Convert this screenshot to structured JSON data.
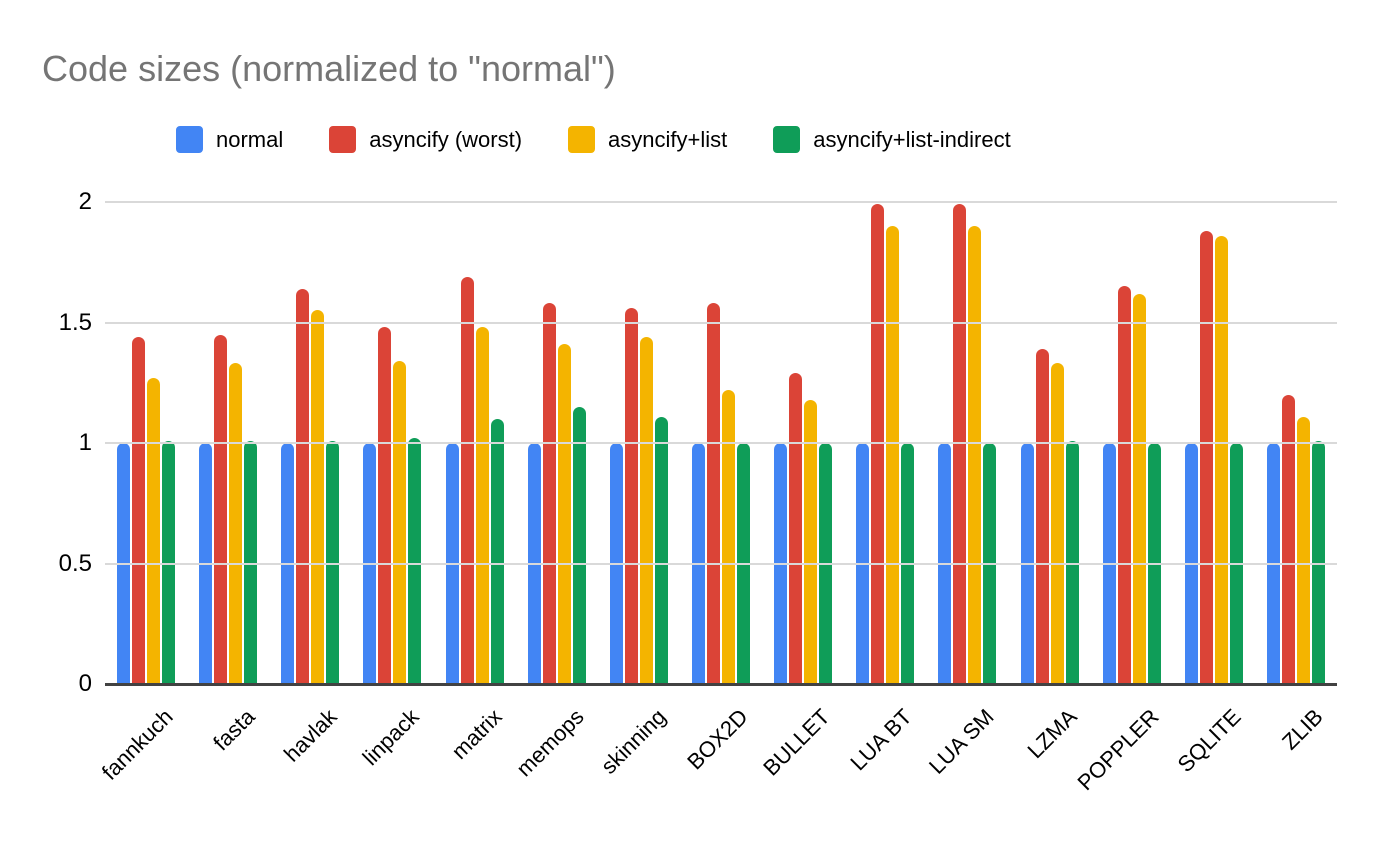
{
  "chart_data": {
    "type": "bar",
    "title": "Code sizes (normalized to \"normal\")",
    "title_color": "#757575",
    "categories": [
      "fannkuch",
      "fasta",
      "havlak",
      "linpack",
      "matrix",
      "memops",
      "skinning",
      "BOX2D",
      "BULLET",
      "LUA BT",
      "LUA SM",
      "LZMA",
      "POPPLER",
      "SQLITE",
      "ZLIB"
    ],
    "series": [
      {
        "name": "normal",
        "color": "#4285F4",
        "values": [
          1.0,
          1.0,
          1.0,
          1.0,
          1.0,
          1.0,
          1.0,
          1.0,
          1.0,
          1.0,
          1.0,
          1.0,
          1.0,
          1.0,
          1.0
        ]
      },
      {
        "name": "asyncify (worst)",
        "color": "#DB4437",
        "values": [
          1.44,
          1.45,
          1.64,
          1.48,
          1.69,
          1.58,
          1.56,
          1.58,
          1.29,
          1.99,
          1.99,
          1.39,
          1.65,
          1.88,
          1.2
        ]
      },
      {
        "name": "asyncify+list",
        "color": "#F4B400",
        "values": [
          1.27,
          1.33,
          1.55,
          1.34,
          1.48,
          1.41,
          1.44,
          1.22,
          1.18,
          1.9,
          1.9,
          1.33,
          1.62,
          1.86,
          1.11
        ]
      },
      {
        "name": "asyncify+list-indirect",
        "color": "#0F9D58",
        "values": [
          1.01,
          1.01,
          1.01,
          1.02,
          1.1,
          1.15,
          1.11,
          1.0,
          1.0,
          1.0,
          1.0,
          1.01,
          1.0,
          1.0,
          1.01
        ]
      }
    ],
    "ylim": [
      0,
      2
    ],
    "yticks": [
      "0",
      "0.5",
      "1",
      "1.5",
      "2"
    ],
    "grid": true,
    "grid_color": "#D9D9D9",
    "axis_color": "#424242",
    "label_color": "#000000",
    "legend_position": "top"
  }
}
